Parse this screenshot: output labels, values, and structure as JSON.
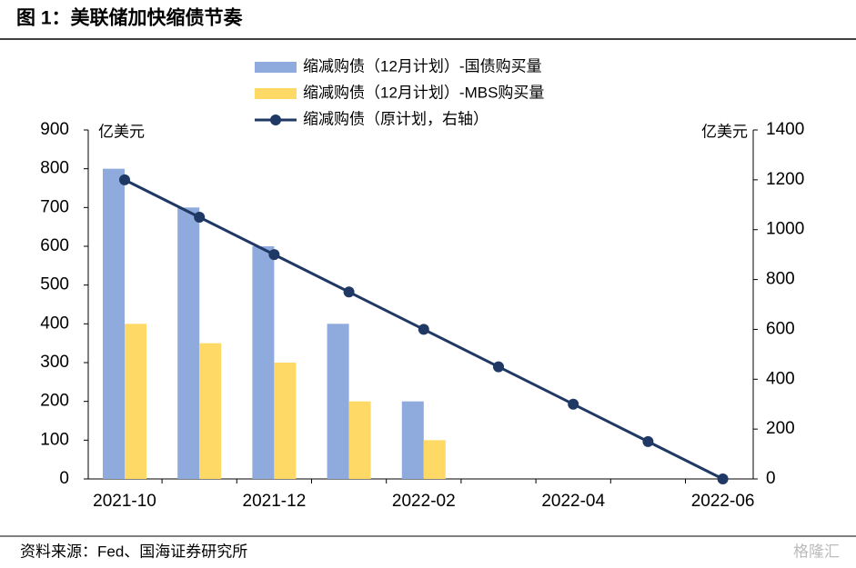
{
  "title": "图 1：美联储加快缩债节奏",
  "source": "资料来源：Fed、国海证券研究所",
  "watermark": "格隆汇",
  "chart_data": {
    "type": "bar",
    "categories": [
      "2021-10",
      null,
      "2021-12",
      null,
      "2022-02",
      null,
      "2022-04",
      null,
      "2022-06"
    ],
    "series": [
      {
        "name": "缩减购债（12月计划）-国债购买量",
        "type": "bar",
        "color": "#8faadc",
        "values": [
          800,
          700,
          600,
          400,
          200,
          null,
          null,
          null,
          null
        ]
      },
      {
        "name": "缩减购债（12月计划）-MBS购买量",
        "type": "bar",
        "color": "#ffd966",
        "values": [
          400,
          350,
          300,
          200,
          100,
          null,
          null,
          null,
          null
        ]
      },
      {
        "name": "缩减购债（原计划，右轴）",
        "type": "line",
        "axis": "y2",
        "color": "#1f3864",
        "values": [
          1200,
          1050,
          900,
          750,
          600,
          450,
          300,
          150,
          0
        ]
      }
    ],
    "y_unit": "亿美元",
    "y2_unit": "亿美元",
    "ylim": [
      0,
      900
    ],
    "yticks": [
      0,
      100,
      200,
      300,
      400,
      500,
      600,
      700,
      800,
      900
    ],
    "y2lim": [
      0,
      1400
    ],
    "y2ticks": [
      0,
      200,
      400,
      600,
      800,
      1000,
      1200,
      1400
    ],
    "legend": "top",
    "grid": false
  }
}
